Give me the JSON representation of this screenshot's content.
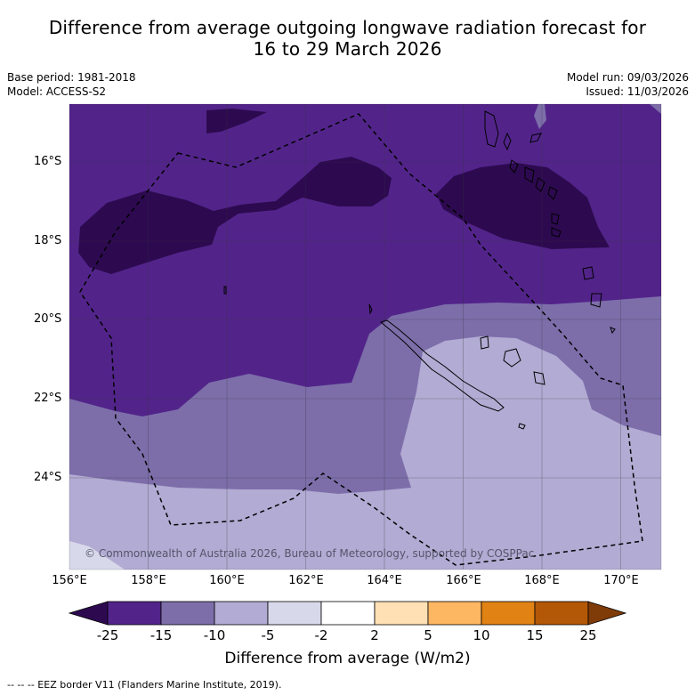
{
  "title": {
    "line1": "Difference from average outgoing longwave radiation forecast for",
    "line2": "16 to 29 March 2026"
  },
  "meta": {
    "base_period": "Base period: 1981-2018",
    "model": "Model: ACCESS-S2",
    "model_run": "Model run: 09/03/2026",
    "issued": "Issued: 11/03/2026"
  },
  "map": {
    "lat_labels": [
      "16°S",
      "18°S",
      "20°S",
      "22°S",
      "24°S"
    ],
    "lon_labels": [
      "156°E",
      "158°E",
      "160°E",
      "162°E",
      "164°E",
      "166°E",
      "168°E",
      "170°E"
    ],
    "copyright": "© Commonwealth of Australia 2026, Bureau of Meteorology, supported by COSPPac",
    "regions": [
      "eez-border",
      "new-caledonia",
      "vanuatu"
    ]
  },
  "colorbar": {
    "title": "Difference from average (W/m2)",
    "ticks": [
      "-25",
      "-15",
      "-10",
      "-5",
      "-2",
      "2",
      "5",
      "10",
      "15",
      "25"
    ],
    "colors": [
      "#2d0a50",
      "#52248a",
      "#7d6eaa",
      "#b2abd3",
      "#d8d8eb",
      "#ffffff",
      "#fee0b4",
      "#fdb662",
      "#e08214",
      "#b35806",
      "#7f3b08"
    ]
  },
  "footer": "-- -- -- EEZ border V11 (Flanders Marine Institute, 2019)."
}
